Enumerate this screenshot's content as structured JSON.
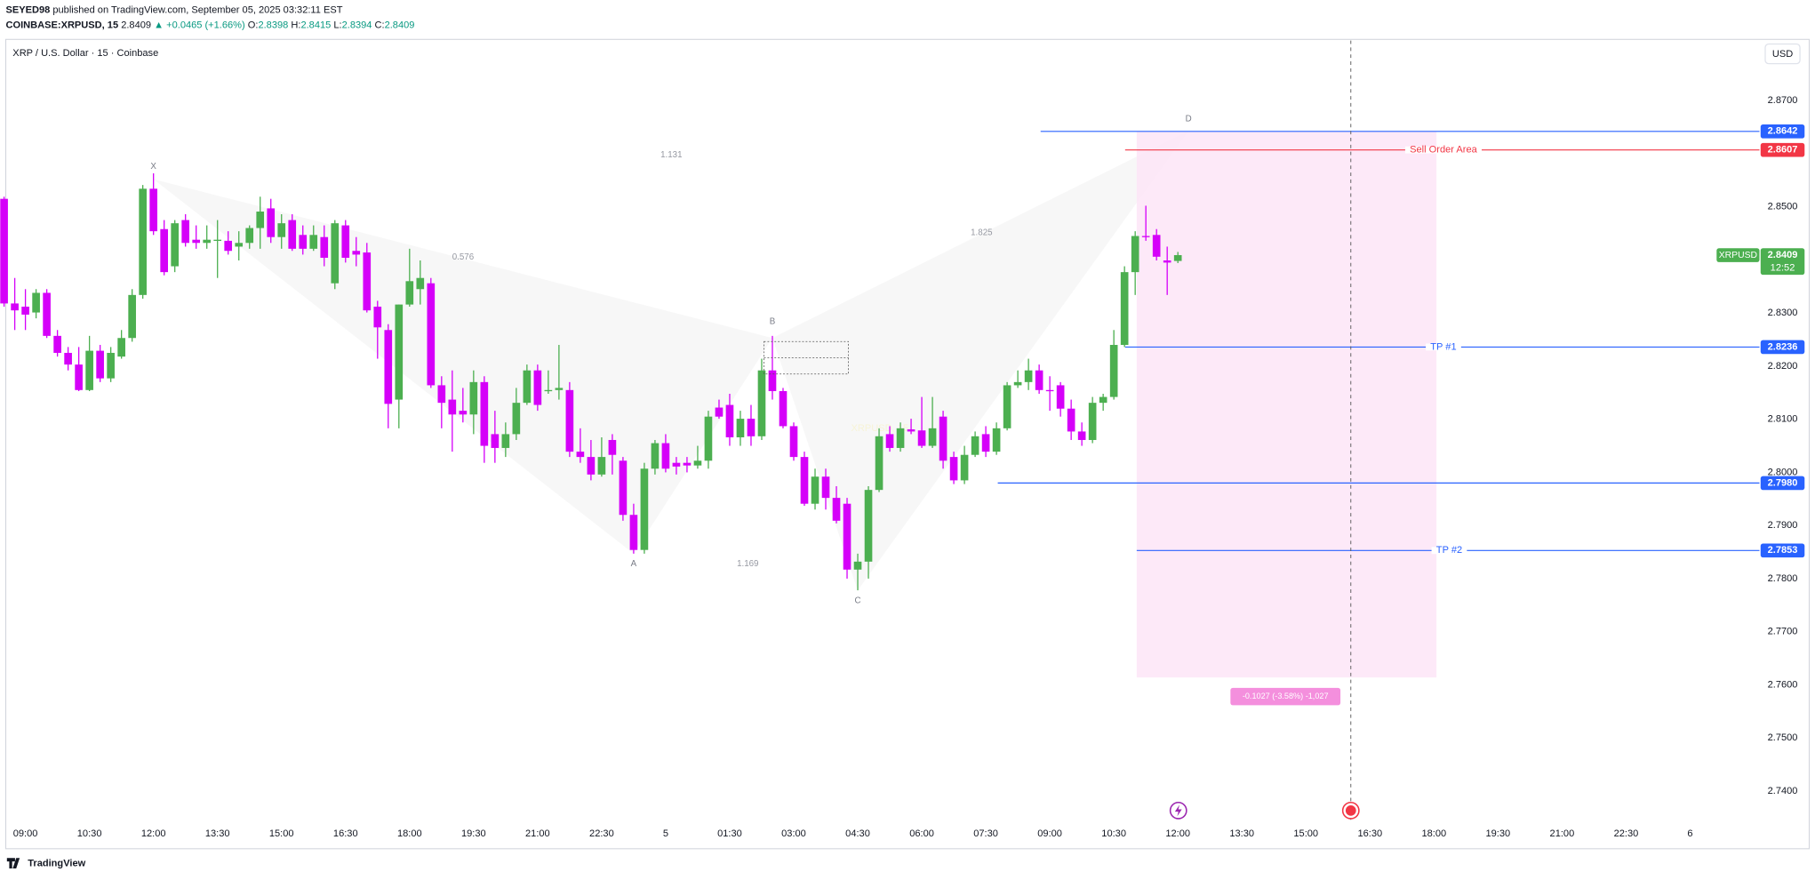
{
  "header": {
    "author": "SEYED98",
    "published": "published on TradingView.com, September 05, 2025 03:32:11 EST",
    "symbol": "COINBASE:XRPUSD, 15",
    "change": "▲ +0.0465 (+1.66%)",
    "ohlc_labels": [
      "O:",
      "H:",
      "L:",
      "C:"
    ]
  },
  "footer": {
    "brand": "TradingView"
  },
  "chart_data": {
    "type": "candlestick",
    "title": "XRP / U.S. Dollar · 15 · Coinbase",
    "currency": "USD",
    "watermark": "XRPUSD, 15",
    "up_color": "#4caf50",
    "down_color": "#d500f9",
    "grid": false,
    "x": [
      -2,
      -1,
      0,
      1,
      2,
      3,
      4,
      5,
      6,
      7,
      8,
      9,
      10,
      11,
      12,
      13,
      14,
      15,
      16,
      17,
      18,
      19,
      20,
      21,
      22,
      23,
      24,
      25,
      26,
      27,
      28,
      29,
      30,
      31,
      32,
      33,
      34,
      35,
      36,
      37,
      38,
      39,
      40,
      41,
      42,
      43,
      44,
      45,
      46,
      47,
      48,
      49,
      50,
      51,
      52,
      53,
      54,
      55,
      56,
      57,
      58,
      59,
      60,
      61,
      62,
      63,
      64,
      65,
      66,
      67,
      68,
      69,
      70,
      71,
      72,
      73,
      74,
      75,
      76,
      77,
      78,
      79,
      80,
      81,
      82,
      83,
      84,
      85,
      86,
      87,
      88,
      89,
      90,
      91,
      92,
      93,
      94,
      95,
      96,
      97,
      98,
      99,
      100,
      101,
      102,
      103,
      104,
      105,
      106,
      107,
      108
    ],
    "open": [
      2.8515,
      2.8318,
      2.8312,
      2.8301,
      2.8338,
      2.8257,
      2.8225,
      2.8203,
      2.8155,
      2.8229,
      2.8177,
      2.8218,
      2.8253,
      2.8334,
      2.8534,
      2.8458,
      2.8388,
      2.8475,
      2.8438,
      2.8432,
      2.8436,
      2.8436,
      2.8425,
      2.8432,
      2.846,
      2.8497,
      2.8443,
      2.8475,
      2.8447,
      2.8421,
      2.8443,
      2.8356,
      2.8465,
      2.8417,
      2.8414,
      2.8312,
      2.8268,
      2.8137,
      2.8316,
      2.8345,
      2.8356,
      2.8164,
      2.8137,
      2.8116,
      2.8109,
      2.817,
      2.8072,
      2.8046,
      2.8072,
      2.8131,
      2.8192,
      2.8153,
      2.8155,
      2.8155,
      2.8039,
      2.8029,
      2.7996,
      2.8061,
      2.8022,
      2.792,
      2.7854,
      2.8007,
      2.8055,
      2.8018,
      2.8018,
      2.8013,
      2.8022,
      2.8122,
      2.8127,
      2.8066,
      2.8101,
      2.8068,
      2.8192,
      2.8153,
      2.8087,
      2.8029,
      2.7941,
      2.7992,
      2.7952,
      2.7941,
      2.7817,
      2.7832,
      2.7967,
      2.8072,
      2.8046,
      2.8081,
      2.8079,
      2.805,
      2.8105,
      2.8029,
      2.7985,
      2.8033,
      2.8072,
      2.8039,
      2.8083,
      2.8164,
      2.817,
      2.8192,
      2.8155,
      2.8164,
      2.812,
      2.8077,
      2.8061,
      2.8131,
      2.8142,
      2.824,
      2.8377,
      2.8445,
      2.8447,
      2.8399,
      2.8398
    ],
    "high": [
      2.8519,
      2.8366,
      2.8345,
      2.8345,
      2.8345,
      2.8268,
      2.8236,
      2.8236,
      2.8257,
      2.824,
      2.8236,
      2.8268,
      2.8345,
      2.8541,
      2.8563,
      2.8475,
      2.8475,
      2.8486,
      2.8465,
      2.8465,
      2.8475,
      2.8454,
      2.8454,
      2.8465,
      2.8519,
      2.8515,
      2.8486,
      2.8486,
      2.8465,
      2.8465,
      2.8465,
      2.8475,
      2.8475,
      2.8443,
      2.8432,
      2.8323,
      2.8279,
      2.8316,
      2.8421,
      2.8399,
      2.8366,
      2.8181,
      2.8192,
      2.8159,
      2.8192,
      2.8181,
      2.8116,
      2.8094,
      2.8159,
      2.8203,
      2.8203,
      2.8192,
      2.824,
      2.817,
      2.8083,
      2.8061,
      2.8066,
      2.8072,
      2.8029,
      2.7941,
      2.8018,
      2.8061,
      2.8072,
      2.8029,
      2.8029,
      2.805,
      2.8116,
      2.8137,
      2.8148,
      2.8116,
      2.8127,
      2.8214,
      2.8257,
      2.8159,
      2.8094,
      2.8039,
      2.8007,
      2.8007,
      2.7974,
      2.7952,
      2.7847,
      2.7974,
      2.8083,
      2.8087,
      2.8094,
      2.8101,
      2.8142,
      2.8142,
      2.8116,
      2.8039,
      2.805,
      2.8077,
      2.8087,
      2.8094,
      2.817,
      2.8192,
      2.8214,
      2.8203,
      2.8181,
      2.817,
      2.8137,
      2.8094,
      2.8142,
      2.8148,
      2.8268,
      2.8388,
      2.8454,
      2.8502,
      2.8458,
      2.8425,
      2.8415
    ],
    "low": [
      2.8312,
      2.8268,
      2.8268,
      2.829,
      2.8253,
      2.8218,
      2.8192,
      2.8153,
      2.8153,
      2.817,
      2.817,
      2.8214,
      2.8246,
      2.8327,
      2.8447,
      2.8371,
      2.8377,
      2.8425,
      2.8421,
      2.8421,
      2.8366,
      2.841,
      2.8399,
      2.8421,
      2.8421,
      2.8432,
      2.8421,
      2.8417,
      2.841,
      2.8417,
      2.8388,
      2.8345,
      2.8395,
      2.8388,
      2.8301,
      2.8214,
      2.8083,
      2.8083,
      2.8312,
      2.8316,
      2.8159,
      2.8083,
      2.8039,
      2.8094,
      2.8072,
      2.8018,
      2.8018,
      2.8029,
      2.8061,
      2.8127,
      2.8116,
      2.8148,
      2.8137,
      2.8029,
      2.8018,
      2.7985,
      2.7992,
      2.7996,
      2.7909,
      2.7847,
      2.7847,
      2.7996,
      2.8,
      2.7996,
      2.8,
      2.8007,
      2.8007,
      2.8101,
      2.805,
      2.805,
      2.805,
      2.8061,
      2.8137,
      2.8083,
      2.8022,
      2.7937,
      2.793,
      2.793,
      2.7904,
      2.78,
      2.7778,
      2.78,
      2.7963,
      2.8039,
      2.8039,
      2.8072,
      2.8046,
      2.8046,
      2.8007,
      2.7978,
      2.7978,
      2.8029,
      2.8029,
      2.8033,
      2.8079,
      2.8159,
      2.8155,
      2.8148,
      2.8116,
      2.8105,
      2.8061,
      2.805,
      2.8055,
      2.8116,
      2.8137,
      2.8236,
      2.8334,
      2.8436,
      2.8399,
      2.8334,
      2.8394
    ],
    "close": [
      2.8318,
      2.8305,
      2.8297,
      2.8338,
      2.8257,
      2.8225,
      2.8203,
      2.8155,
      2.8229,
      2.8177,
      2.8225,
      2.8253,
      2.8334,
      2.8534,
      2.8454,
      2.8377,
      2.8469,
      2.8432,
      2.8432,
      2.8438,
      2.8438,
      2.8417,
      2.8432,
      2.846,
      2.8491,
      2.8443,
      2.8469,
      2.8421,
      2.8421,
      2.8447,
      2.8404,
      2.8469,
      2.8404,
      2.841,
      2.8305,
      2.8273,
      2.8129,
      2.8316,
      2.836,
      2.8366,
      2.8164,
      2.8131,
      2.8109,
      2.8109,
      2.817,
      2.805,
      2.8046,
      2.8072,
      2.8131,
      2.8192,
      2.8127,
      2.8155,
      2.8159,
      2.8039,
      2.8029,
      2.7996,
      2.8029,
      2.8033,
      2.792,
      2.7854,
      2.8007,
      2.8055,
      2.8007,
      2.8011,
      2.8013,
      2.8022,
      2.8105,
      2.8105,
      2.8066,
      2.8101,
      2.8068,
      2.8192,
      2.8153,
      2.8087,
      2.8029,
      2.7941,
      2.7992,
      2.7952,
      2.7909,
      2.7817,
      2.7832,
      2.7967,
      2.8068,
      2.8046,
      2.8083,
      2.8077,
      2.805,
      2.8083,
      2.8022,
      2.7985,
      2.8033,
      2.8068,
      2.8039,
      2.8083,
      2.8164,
      2.817,
      2.8192,
      2.8155,
      2.8153,
      2.812,
      2.8077,
      2.8061,
      2.8131,
      2.8142,
      2.824,
      2.8377,
      2.8445,
      2.8443,
      2.8406,
      2.8395,
      2.8409
    ],
    "xlim": [
      -1.84,
      162.5
    ],
    "xticks": [
      {
        "value": 0,
        "label": "09:00"
      },
      {
        "value": 6,
        "label": "10:30"
      },
      {
        "value": 12,
        "label": "12:00"
      },
      {
        "value": 18,
        "label": "13:30"
      },
      {
        "value": 24,
        "label": "15:00"
      },
      {
        "value": 30,
        "label": "16:30"
      },
      {
        "value": 36,
        "label": "18:00"
      },
      {
        "value": 42,
        "label": "19:30"
      },
      {
        "value": 48,
        "label": "21:00"
      },
      {
        "value": 54,
        "label": "22:30"
      },
      {
        "value": 60,
        "label": "5"
      },
      {
        "value": 66,
        "label": "01:30"
      },
      {
        "value": 72,
        "label": "03:00"
      },
      {
        "value": 78,
        "label": "04:30"
      },
      {
        "value": 84,
        "label": "06:00"
      },
      {
        "value": 90,
        "label": "07:30"
      },
      {
        "value": 96,
        "label": "09:00"
      },
      {
        "value": 102,
        "label": "10:30"
      },
      {
        "value": 108,
        "label": "12:00"
      },
      {
        "value": 114,
        "label": "13:30"
      },
      {
        "value": 120,
        "label": "15:00"
      },
      {
        "value": 126,
        "label": "16:30"
      },
      {
        "value": 132,
        "label": "18:00"
      },
      {
        "value": 138,
        "label": "19:30"
      },
      {
        "value": 144,
        "label": "21:00"
      },
      {
        "value": 150,
        "label": "22:30"
      },
      {
        "value": 156,
        "label": "6"
      }
    ],
    "ylim": [
      2.7346,
      2.8813
    ],
    "yticks": [
      {
        "value": 2.74,
        "label": "2.7400"
      },
      {
        "value": 2.75,
        "label": "2.7500"
      },
      {
        "value": 2.76,
        "label": "2.7600"
      },
      {
        "value": 2.77,
        "label": "2.7700"
      },
      {
        "value": 2.78,
        "label": "2.7800"
      },
      {
        "value": 2.79,
        "label": "2.7900"
      },
      {
        "value": 2.8,
        "label": "2.8000"
      },
      {
        "value": 2.81,
        "label": "2.8100"
      },
      {
        "value": 2.82,
        "label": "2.8200"
      },
      {
        "value": 2.83,
        "label": "2.8300"
      },
      {
        "value": 2.84,
        "label": "2.8400"
      },
      {
        "value": 2.85,
        "label": "2.8500"
      },
      {
        "value": 2.86,
        "label": "2.8600"
      },
      {
        "value": 2.87,
        "label": "2.8700"
      }
    ],
    "hlines": [
      {
        "value": 2.8642,
        "value_label": "2.8642",
        "color": "#2962ff"
      },
      {
        "value": 2.8607,
        "value_label": "2.8607",
        "color": "#f23645",
        "text": "Sell Order Area"
      },
      {
        "value": 2.8236,
        "value_label": "2.8236",
        "color": "#2962ff",
        "text": "TP #1"
      },
      {
        "value": 2.798,
        "value_label": "2.7980",
        "color": "#2962ff"
      },
      {
        "value": 2.7853,
        "value_label": "2.7853",
        "color": "#2962ff",
        "text": "TP #2"
      }
    ],
    "pattern": {
      "points": [
        {
          "label": "X",
          "x": 12,
          "y": 2.8552
        },
        {
          "label": "A",
          "x": 57,
          "y": 2.7847
        },
        {
          "label": "B",
          "x": 70,
          "y": 2.8253
        },
        {
          "label": "C",
          "x": 78,
          "y": 2.7778
        },
        {
          "label": "D",
          "x": 109,
          "y": 2.8643
        }
      ],
      "ratios": [
        0.576,
        1.131,
        1.825,
        1.169
      ]
    },
    "position": {
      "entry": 2.8642,
      "target": 2.7614,
      "label": "-0.1027 (-3.58%) -1,027"
    },
    "symbol_label": "XRPUSD",
    "countdown": "12:52"
  }
}
